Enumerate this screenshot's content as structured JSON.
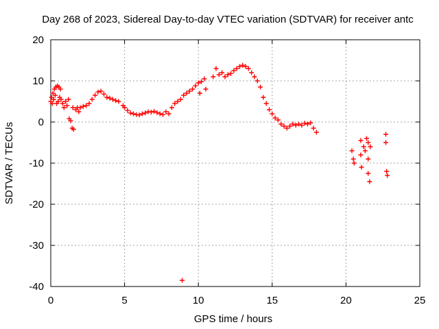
{
  "chart_data": {
    "type": "scatter",
    "title": "Day 268 of 2023, Sidereal Day-to-day VTEC variation (SDTVAR) for receiver antc",
    "xlabel": "GPS time / hours",
    "ylabel": "SDTVAR / TECUs",
    "xlim": [
      0,
      25
    ],
    "ylim": [
      -40,
      20
    ],
    "xticks": [
      0,
      5,
      10,
      15,
      20,
      25
    ],
    "yticks": [
      -40,
      -30,
      -20,
      -10,
      0,
      10,
      20
    ],
    "grid": true,
    "marker": "+",
    "color": "#ff0000",
    "series": [
      {
        "name": "SDTVAR",
        "points": [
          [
            0.0,
            5.0
          ],
          [
            0.05,
            6.0
          ],
          [
            0.1,
            4.5
          ],
          [
            0.15,
            7.0
          ],
          [
            0.2,
            5.5
          ],
          [
            0.25,
            8.0
          ],
          [
            0.3,
            6.5
          ],
          [
            0.35,
            8.5
          ],
          [
            0.4,
            4.5
          ],
          [
            0.45,
            8.8
          ],
          [
            0.5,
            5.0
          ],
          [
            0.55,
            8.5
          ],
          [
            0.6,
            6.0
          ],
          [
            0.65,
            8.0
          ],
          [
            0.7,
            5.5
          ],
          [
            0.8,
            4.5
          ],
          [
            0.9,
            3.5
          ],
          [
            1.0,
            5.0
          ],
          [
            1.1,
            4.0
          ],
          [
            1.2,
            5.5
          ],
          [
            1.25,
            0.8
          ],
          [
            1.35,
            0.3
          ],
          [
            1.45,
            -1.5
          ],
          [
            1.5,
            3.5
          ],
          [
            1.55,
            -1.8
          ],
          [
            1.7,
            3.0
          ],
          [
            1.8,
            3.5
          ],
          [
            1.9,
            2.5
          ],
          [
            2.0,
            3.5
          ],
          [
            2.2,
            3.8
          ],
          [
            2.4,
            4.0
          ],
          [
            2.6,
            4.5
          ],
          [
            2.8,
            5.5
          ],
          [
            3.0,
            6.5
          ],
          [
            3.2,
            7.3
          ],
          [
            3.4,
            7.5
          ],
          [
            3.6,
            6.8
          ],
          [
            3.8,
            6.0
          ],
          [
            4.0,
            5.8
          ],
          [
            4.2,
            5.5
          ],
          [
            4.4,
            5.2
          ],
          [
            4.6,
            5.0
          ],
          [
            4.9,
            4.0
          ],
          [
            5.0,
            3.5
          ],
          [
            5.2,
            2.8
          ],
          [
            5.4,
            2.2
          ],
          [
            5.6,
            2.0
          ],
          [
            5.8,
            1.8
          ],
          [
            6.0,
            1.7
          ],
          [
            6.2,
            2.0
          ],
          [
            6.4,
            2.2
          ],
          [
            6.6,
            2.5
          ],
          [
            6.8,
            2.4
          ],
          [
            7.0,
            2.6
          ],
          [
            7.2,
            2.3
          ],
          [
            7.4,
            2.0
          ],
          [
            7.6,
            1.8
          ],
          [
            7.8,
            2.5
          ],
          [
            8.0,
            2.0
          ],
          [
            8.2,
            3.5
          ],
          [
            8.4,
            4.5
          ],
          [
            8.6,
            5.0
          ],
          [
            8.8,
            5.5
          ],
          [
            8.9,
            -38.5
          ],
          [
            9.0,
            6.5
          ],
          [
            9.2,
            7.0
          ],
          [
            9.4,
            7.5
          ],
          [
            9.6,
            8.0
          ],
          [
            9.8,
            8.8
          ],
          [
            10.0,
            9.5
          ],
          [
            10.1,
            7.0
          ],
          [
            10.2,
            9.8
          ],
          [
            10.4,
            10.5
          ],
          [
            10.5,
            8.0
          ],
          [
            11.0,
            11.0
          ],
          [
            11.2,
            13.0
          ],
          [
            11.4,
            11.5
          ],
          [
            11.6,
            12.0
          ],
          [
            11.8,
            11.0
          ],
          [
            12.0,
            11.5
          ],
          [
            12.2,
            11.8
          ],
          [
            12.4,
            12.5
          ],
          [
            12.6,
            13.0
          ],
          [
            12.8,
            13.5
          ],
          [
            13.0,
            13.8
          ],
          [
            13.2,
            13.5
          ],
          [
            13.4,
            13.0
          ],
          [
            13.6,
            12.0
          ],
          [
            13.8,
            11.0
          ],
          [
            14.0,
            10.0
          ],
          [
            14.2,
            8.5
          ],
          [
            14.4,
            6.0
          ],
          [
            14.6,
            4.5
          ],
          [
            14.8,
            3.0
          ],
          [
            15.0,
            2.0
          ],
          [
            15.2,
            1.0
          ],
          [
            15.4,
            0.5
          ],
          [
            15.6,
            -0.5
          ],
          [
            15.8,
            -1.0
          ],
          [
            16.0,
            -1.5
          ],
          [
            16.2,
            -1.0
          ],
          [
            16.4,
            -0.5
          ],
          [
            16.6,
            -0.8
          ],
          [
            16.8,
            -0.5
          ],
          [
            17.0,
            -0.8
          ],
          [
            17.2,
            -0.3
          ],
          [
            17.4,
            -0.5
          ],
          [
            17.6,
            -0.2
          ],
          [
            17.8,
            -1.5
          ],
          [
            18.0,
            -2.5
          ],
          [
            20.4,
            -7.0
          ],
          [
            20.5,
            -9.0
          ],
          [
            20.55,
            -10.0
          ],
          [
            21.0,
            -4.5
          ],
          [
            21.0,
            -8.0
          ],
          [
            21.05,
            -11.0
          ],
          [
            21.2,
            -6.0
          ],
          [
            21.3,
            -7.0
          ],
          [
            21.4,
            -4.0
          ],
          [
            21.5,
            -5.0
          ],
          [
            21.5,
            -9.0
          ],
          [
            21.5,
            -12.5
          ],
          [
            21.6,
            -14.5
          ],
          [
            21.65,
            -6.0
          ],
          [
            22.7,
            -3.0
          ],
          [
            22.7,
            -5.0
          ],
          [
            22.75,
            -12.0
          ],
          [
            22.8,
            -13.0
          ]
        ]
      }
    ]
  }
}
